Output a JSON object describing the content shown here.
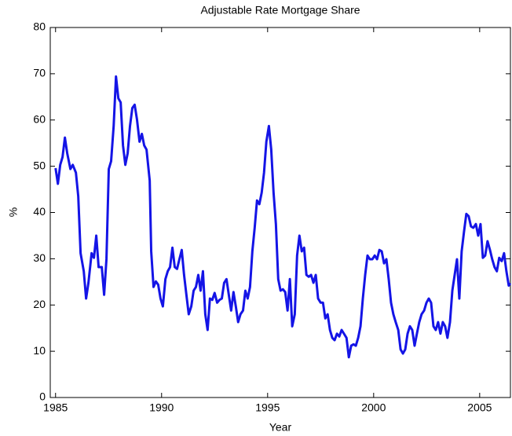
{
  "chart_data": {
    "type": "line",
    "title": "Adjustable Rate Mortgage Share",
    "x_label": "Year",
    "y_label": "%",
    "color": "#1414e6",
    "grid": false,
    "xlim": [
      1984.75,
      2006.45
    ],
    "ylim": [
      0,
      80
    ],
    "xticks": [
      1985,
      1990,
      1995,
      2000,
      2005
    ],
    "yticks": [
      0,
      10,
      20,
      30,
      40,
      50,
      60,
      70,
      80
    ],
    "x": [
      1985.0,
      1985.11,
      1985.22,
      1985.33,
      1985.44,
      1985.55,
      1985.7,
      1985.81,
      1985.96,
      1986.07,
      1986.18,
      1986.33,
      1986.44,
      1986.55,
      1986.7,
      1986.81,
      1986.92,
      1987.03,
      1987.18,
      1987.29,
      1987.4,
      1987.51,
      1987.62,
      1987.74,
      1987.85,
      1987.96,
      1988.07,
      1988.18,
      1988.29,
      1988.4,
      1988.51,
      1988.62,
      1988.73,
      1988.84,
      1988.96,
      1989.07,
      1989.18,
      1989.29,
      1989.44,
      1989.51,
      1989.62,
      1989.73,
      1989.84,
      1989.95,
      1990.06,
      1990.18,
      1990.29,
      1990.4,
      1990.51,
      1990.62,
      1990.73,
      1990.84,
      1990.95,
      1991.06,
      1991.17,
      1991.28,
      1991.4,
      1991.51,
      1991.62,
      1991.73,
      1991.84,
      1991.95,
      1992.06,
      1992.17,
      1992.28,
      1992.39,
      1992.5,
      1992.62,
      1992.73,
      1992.84,
      1992.95,
      1993.06,
      1993.17,
      1993.28,
      1993.39,
      1993.5,
      1993.61,
      1993.72,
      1993.84,
      1993.95,
      1994.06,
      1994.17,
      1994.28,
      1994.39,
      1994.5,
      1994.61,
      1994.72,
      1994.83,
      1994.94,
      1995.06,
      1995.17,
      1995.28,
      1995.39,
      1995.5,
      1995.61,
      1995.72,
      1995.83,
      1995.94,
      1996.05,
      1996.16,
      1996.28,
      1996.39,
      1996.5,
      1996.61,
      1996.72,
      1996.83,
      1996.94,
      1997.05,
      1997.16,
      1997.27,
      1997.38,
      1997.5,
      1997.61,
      1997.72,
      1997.83,
      1997.94,
      1998.05,
      1998.16,
      1998.27,
      1998.38,
      1998.49,
      1998.6,
      1998.72,
      1998.83,
      1998.94,
      1999.05,
      1999.16,
      1999.27,
      1999.38,
      1999.49,
      1999.6,
      1999.71,
      1999.82,
      1999.94,
      2000.05,
      2000.16,
      2000.27,
      2000.38,
      2000.49,
      2000.6,
      2000.71,
      2000.82,
      2000.93,
      2001.04,
      2001.16,
      2001.27,
      2001.38,
      2001.49,
      2001.6,
      2001.71,
      2001.82,
      2001.93,
      2002.04,
      2002.15,
      2002.26,
      2002.38,
      2002.49,
      2002.6,
      2002.71,
      2002.82,
      2002.93,
      2003.04,
      2003.15,
      2003.26,
      2003.37,
      2003.48,
      2003.6,
      2003.71,
      2003.82,
      2003.93,
      2004.04,
      2004.15,
      2004.26,
      2004.37,
      2004.48,
      2004.59,
      2004.7,
      2004.82,
      2004.93,
      2005.04,
      2005.15,
      2005.26,
      2005.37,
      2005.48,
      2005.59,
      2005.7,
      2005.81,
      2005.92,
      2006.04,
      2006.15,
      2006.26,
      2006.37,
      2006.44
    ],
    "values": [
      49.6,
      46.2,
      50.3,
      52,
      56.2,
      52.8,
      49.4,
      50.3,
      48.6,
      43.5,
      31.2,
      27.3,
      21.4,
      24.8,
      31.2,
      30.2,
      35,
      28.2,
      28.2,
      22.2,
      29.9,
      49.4,
      51.1,
      58.7,
      69.4,
      64.7,
      63.8,
      54.5,
      50.3,
      52.8,
      58.7,
      62.6,
      63.3,
      60.1,
      55.3,
      57,
      54.5,
      53.6,
      46.9,
      31.6,
      23.9,
      25.1,
      24.4,
      21.4,
      19.7,
      25.6,
      27.3,
      28.2,
      32.4,
      28.2,
      27.8,
      29.9,
      31.9,
      26.5,
      22.2,
      18,
      19.7,
      23.1,
      23.9,
      26.5,
      23.1,
      27.3,
      18,
      14.6,
      21.4,
      21.1,
      22.6,
      20.5,
      21.1,
      21.4,
      24.8,
      25.6,
      22.2,
      18.8,
      22.8,
      19.7,
      16.3,
      18,
      18.8,
      23.1,
      21.4,
      23.9,
      31.6,
      36.7,
      42.6,
      41.8,
      44.3,
      48.6,
      55.3,
      58.7,
      53.6,
      44.3,
      37.5,
      25.6,
      23.1,
      23.4,
      22.8,
      18.8,
      25.6,
      15.4,
      18,
      30.7,
      35,
      31.6,
      32.4,
      26.5,
      26.1,
      26.5,
      24.8,
      26.5,
      21.4,
      20.5,
      20.5,
      17.1,
      18,
      14.6,
      12.9,
      12.4,
      13.8,
      13.2,
      14.6,
      13.8,
      12.9,
      8.7,
      11.2,
      11.5,
      11.2,
      12.9,
      15.4,
      21.4,
      26.5,
      30.7,
      29.9,
      29.9,
      30.7,
      29.9,
      31.9,
      31.6,
      29,
      29.9,
      25.6,
      20.5,
      18,
      16.3,
      14.6,
      10.4,
      9.5,
      10.4,
      13.8,
      15.4,
      14.6,
      11.2,
      13.8,
      16.3,
      18,
      18.8,
      20.5,
      21.4,
      20.5,
      15.4,
      14.6,
      16.3,
      13.8,
      16.3,
      15.4,
      12.9,
      16.3,
      23.1,
      26.5,
      29.9,
      21.4,
      31.6,
      35.8,
      39.7,
      39.2,
      37,
      36.7,
      37.5,
      35,
      37.5,
      30.2,
      30.7,
      33.8,
      32,
      29.9,
      28.2,
      27.3,
      30.2,
      29.5,
      31.2,
      27.3,
      24.2,
      24.7
    ]
  }
}
